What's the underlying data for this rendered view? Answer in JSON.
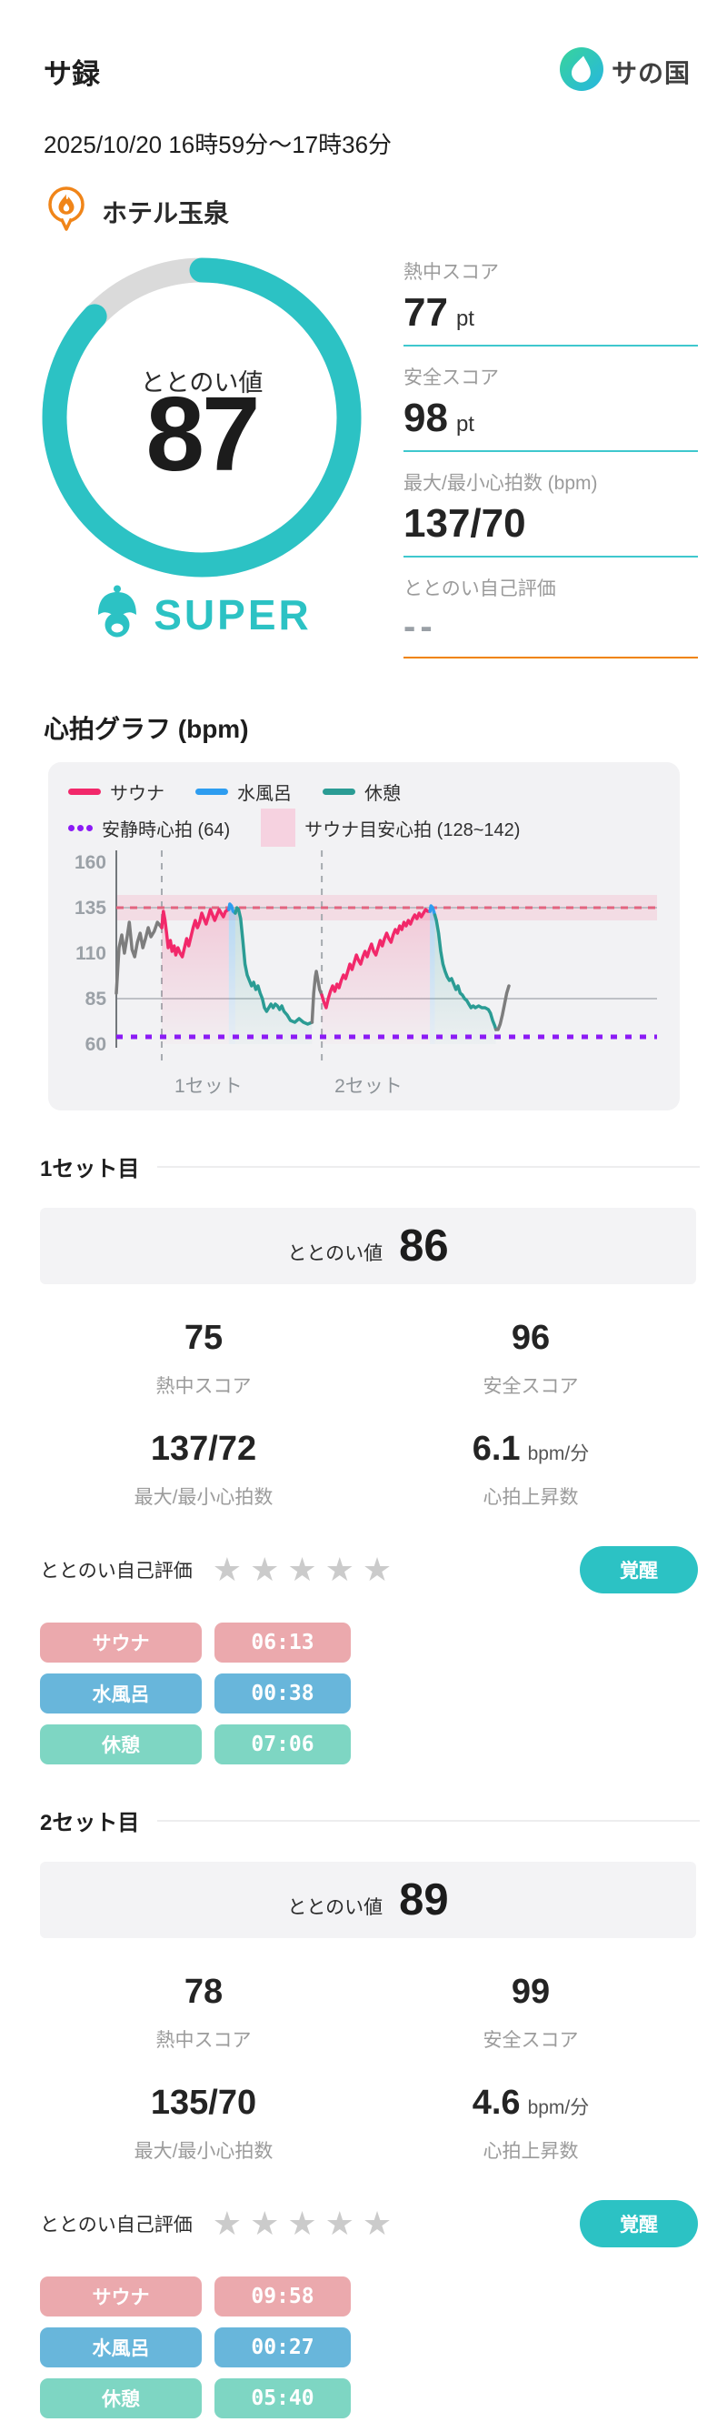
{
  "header": {
    "app_title": "サ録",
    "brand": "サの国"
  },
  "session": {
    "datetime": "2025/10/20 16時59分〜17時36分",
    "location": "ホテル玉泉"
  },
  "summary": {
    "gauge_label": "ととのい値",
    "gauge_value": "87",
    "gauge_percent": 87,
    "rank": "SUPER",
    "stats": [
      {
        "label": "熱中スコア",
        "value": "77",
        "unit": "pt"
      },
      {
        "label": "安全スコア",
        "value": "98",
        "unit": "pt"
      },
      {
        "label": "最大/最小心拍数 (bpm)",
        "value": "137/70",
        "unit": ""
      },
      {
        "label": "ととのい自己評価",
        "value": "--",
        "unit": ""
      }
    ]
  },
  "chart": {
    "heading": "心拍グラフ (bpm)",
    "legend": [
      {
        "label": "サウナ",
        "swatch": "line-sauna"
      },
      {
        "label": "水風呂",
        "swatch": "line-mizuburo"
      },
      {
        "label": "休憩",
        "swatch": "line-rest"
      },
      {
        "label": "安静時心拍 (64)",
        "swatch": "dots-purple"
      },
      {
        "label": "サウナ目安心拍 (128~142)",
        "swatch": "band-pink"
      }
    ]
  },
  "chart_data": {
    "type": "line",
    "title": "心拍グラフ (bpm)",
    "ylabel": "bpm",
    "yticks": [
      160,
      135,
      110,
      85,
      60
    ],
    "ylim": [
      55,
      165
    ],
    "xlim_minutes": [
      0,
      50
    ],
    "grid_lines_bpm": [
      135,
      85
    ],
    "reference_lines": {
      "resting_hr": {
        "label": "安静時心拍 (64)",
        "value": 64,
        "style": "purple-dotted"
      },
      "sauna_target": {
        "label": "サウナ目安心拍 (128~142)",
        "range": [
          128,
          142
        ],
        "line": 135,
        "style": "pink-band-red-dashed"
      }
    },
    "set_markers": [
      {
        "label": "1セット",
        "minute": 4.2
      },
      {
        "label": "2セット",
        "minute": 19.0
      }
    ],
    "segments": [
      {
        "phase": "開始前",
        "key": "gray",
        "fill": false,
        "points": [
          [
            0,
            88
          ],
          [
            0.25,
            113
          ],
          [
            0.5,
            120
          ],
          [
            0.75,
            110
          ],
          [
            1.0,
            119
          ],
          [
            1.2,
            127
          ],
          [
            1.45,
            112
          ],
          [
            1.7,
            108
          ],
          [
            1.95,
            116
          ],
          [
            2.2,
            121
          ],
          [
            2.45,
            113
          ],
          [
            2.7,
            118
          ],
          [
            2.95,
            124
          ],
          [
            3.2,
            119
          ],
          [
            3.5,
            122
          ],
          [
            3.8,
            127
          ],
          [
            4.2,
            124
          ]
        ]
      },
      {
        "phase": "サウナ1",
        "key": "sauna",
        "fill": true,
        "points": [
          [
            4.2,
            124
          ],
          [
            4.35,
            133
          ],
          [
            4.5,
            128
          ],
          [
            4.65,
            121
          ],
          [
            4.8,
            113
          ],
          [
            5.0,
            117
          ],
          [
            5.15,
            111
          ],
          [
            5.35,
            114
          ],
          [
            5.5,
            109
          ],
          [
            5.7,
            113
          ],
          [
            5.9,
            110
          ],
          [
            6.1,
            108
          ],
          [
            6.3,
            113
          ],
          [
            6.5,
            118
          ],
          [
            6.7,
            114
          ],
          [
            6.9,
            119
          ],
          [
            7.1,
            124
          ],
          [
            7.3,
            128
          ],
          [
            7.5,
            124
          ],
          [
            7.7,
            127
          ],
          [
            7.9,
            132
          ],
          [
            8.1,
            129
          ],
          [
            8.3,
            126
          ],
          [
            8.5,
            130
          ],
          [
            8.7,
            134
          ],
          [
            8.9,
            131
          ],
          [
            9.1,
            128
          ],
          [
            9.3,
            131
          ],
          [
            9.5,
            134
          ],
          [
            9.7,
            132
          ],
          [
            9.9,
            130
          ],
          [
            10.1,
            133
          ],
          [
            10.4,
            134
          ]
        ]
      },
      {
        "phase": "水風呂1",
        "key": "mizuburo",
        "fill": true,
        "points": [
          [
            10.4,
            134
          ],
          [
            10.5,
            137
          ],
          [
            10.65,
            136
          ],
          [
            10.8,
            133
          ],
          [
            11.0,
            132
          ]
        ]
      },
      {
        "phase": "休憩1",
        "key": "rest",
        "fill": true,
        "points": [
          [
            11.0,
            132
          ],
          [
            11.15,
            135
          ],
          [
            11.3,
            134
          ],
          [
            11.5,
            129
          ],
          [
            11.7,
            117
          ],
          [
            11.9,
            104
          ],
          [
            12.1,
            98
          ],
          [
            12.3,
            95
          ],
          [
            12.5,
            92
          ],
          [
            12.7,
            94
          ],
          [
            12.9,
            90
          ],
          [
            13.1,
            92
          ],
          [
            13.3,
            88
          ],
          [
            13.5,
            85
          ],
          [
            13.7,
            80
          ],
          [
            13.9,
            78
          ],
          [
            14.1,
            80
          ],
          [
            14.3,
            82
          ],
          [
            14.5,
            80
          ],
          [
            14.7,
            82
          ],
          [
            14.9,
            81
          ],
          [
            15.1,
            79
          ],
          [
            15.3,
            81
          ],
          [
            15.5,
            78
          ],
          [
            15.8,
            76
          ],
          [
            16.1,
            73
          ],
          [
            16.5,
            72
          ],
          [
            16.9,
            74
          ],
          [
            17.3,
            72
          ],
          [
            17.7,
            71
          ],
          [
            18.1,
            72
          ]
        ]
      },
      {
        "phase": "セット間",
        "key": "gray",
        "fill": false,
        "points": [
          [
            18.1,
            72
          ],
          [
            18.25,
            88
          ],
          [
            18.4,
            97
          ],
          [
            18.5,
            100
          ],
          [
            18.65,
            95
          ],
          [
            18.8,
            90
          ],
          [
            19.0,
            87
          ]
        ]
      },
      {
        "phase": "サウナ2",
        "key": "sauna",
        "fill": true,
        "points": [
          [
            19.0,
            87
          ],
          [
            19.2,
            83
          ],
          [
            19.4,
            80
          ],
          [
            19.6,
            85
          ],
          [
            19.8,
            89
          ],
          [
            20.0,
            92
          ],
          [
            20.2,
            89
          ],
          [
            20.4,
            93
          ],
          [
            20.6,
            91
          ],
          [
            20.8,
            95
          ],
          [
            21.0,
            98
          ],
          [
            21.2,
            96
          ],
          [
            21.4,
            100
          ],
          [
            21.6,
            104
          ],
          [
            21.8,
            101
          ],
          [
            22.0,
            105
          ],
          [
            22.2,
            109
          ],
          [
            22.4,
            106
          ],
          [
            22.6,
            104
          ],
          [
            22.8,
            108
          ],
          [
            23.0,
            111
          ],
          [
            23.2,
            108
          ],
          [
            23.4,
            112
          ],
          [
            23.6,
            115
          ],
          [
            23.8,
            111
          ],
          [
            24.0,
            109
          ],
          [
            24.2,
            113
          ],
          [
            24.4,
            117
          ],
          [
            24.6,
            114
          ],
          [
            24.8,
            118
          ],
          [
            25.0,
            121
          ],
          [
            25.2,
            118
          ],
          [
            25.4,
            116
          ],
          [
            25.6,
            120
          ],
          [
            25.8,
            123
          ],
          [
            26.0,
            121
          ],
          [
            26.2,
            125
          ],
          [
            26.4,
            123
          ],
          [
            26.6,
            127
          ],
          [
            26.8,
            125
          ],
          [
            27.0,
            128
          ],
          [
            27.2,
            126
          ],
          [
            27.4,
            129
          ],
          [
            27.6,
            131
          ],
          [
            27.8,
            129
          ],
          [
            28.0,
            132
          ],
          [
            28.2,
            130
          ],
          [
            28.4,
            132
          ],
          [
            28.6,
            134
          ],
          [
            28.8,
            133
          ],
          [
            29.0,
            133
          ]
        ]
      },
      {
        "phase": "水風呂2",
        "key": "mizuburo",
        "fill": true,
        "points": [
          [
            29.0,
            133
          ],
          [
            29.1,
            136
          ],
          [
            29.25,
            135
          ],
          [
            29.45,
            131
          ]
        ]
      },
      {
        "phase": "休憩2",
        "key": "rest",
        "fill": true,
        "points": [
          [
            29.45,
            131
          ],
          [
            29.6,
            128
          ],
          [
            29.8,
            121
          ],
          [
            30.0,
            111
          ],
          [
            30.2,
            104
          ],
          [
            30.4,
            100
          ],
          [
            30.6,
            97
          ],
          [
            30.8,
            95
          ],
          [
            31.0,
            96
          ],
          [
            31.2,
            93
          ],
          [
            31.4,
            90
          ],
          [
            31.6,
            92
          ],
          [
            31.8,
            88
          ],
          [
            32.0,
            87
          ],
          [
            32.2,
            85
          ],
          [
            32.4,
            84
          ],
          [
            32.6,
            82
          ],
          [
            32.8,
            80
          ],
          [
            33.0,
            81
          ],
          [
            33.2,
            80
          ],
          [
            33.5,
            81
          ],
          [
            33.8,
            80
          ],
          [
            34.1,
            80
          ],
          [
            34.4,
            79
          ],
          [
            34.6,
            77
          ],
          [
            34.8,
            73
          ],
          [
            35.0,
            70
          ],
          [
            35.1,
            68
          ]
        ]
      },
      {
        "phase": "終了後",
        "key": "gray",
        "fill": false,
        "points": [
          [
            35.1,
            68
          ],
          [
            35.3,
            68
          ],
          [
            35.5,
            71
          ],
          [
            35.7,
            76
          ],
          [
            35.9,
            82
          ],
          [
            36.1,
            88
          ],
          [
            36.3,
            92
          ]
        ]
      }
    ]
  },
  "sets": [
    {
      "title": "1セット目",
      "totonoi_label": "ととのい値",
      "totonoi_value": "86",
      "stats": [
        {
          "value": "75",
          "unit": "",
          "label": "熱中スコア"
        },
        {
          "value": "96",
          "unit": "",
          "label": "安全スコア"
        },
        {
          "value": "137/72",
          "unit": "",
          "label": "最大/最小心拍数"
        },
        {
          "value": "6.1",
          "unit": "bpm/分",
          "label": "心拍上昇数"
        }
      ],
      "rating": {
        "label": "ととのい自己評価",
        "stars_total": 5,
        "stars_filled": 0
      },
      "state_button": "覚醒",
      "durations": [
        {
          "label": "サウナ",
          "time": "06:13"
        },
        {
          "label": "水風呂",
          "time": "00:38"
        },
        {
          "label": "休憩",
          "time": "07:06"
        }
      ]
    },
    {
      "title": "2セット目",
      "totonoi_label": "ととのい値",
      "totonoi_value": "89",
      "stats": [
        {
          "value": "78",
          "unit": "",
          "label": "熱中スコア"
        },
        {
          "value": "99",
          "unit": "",
          "label": "安全スコア"
        },
        {
          "value": "135/70",
          "unit": "",
          "label": "最大/最小心拍数"
        },
        {
          "value": "4.6",
          "unit": "bpm/分",
          "label": "心拍上昇数"
        }
      ],
      "rating": {
        "label": "ととのい自己評価",
        "stars_total": 5,
        "stars_filled": 0
      },
      "state_button": "覚醒",
      "durations": [
        {
          "label": "サウナ",
          "time": "09:58"
        },
        {
          "label": "水風呂",
          "time": "00:27"
        },
        {
          "label": "休憩",
          "time": "05:40"
        }
      ]
    }
  ],
  "colors": {
    "accent_teal": "#2cc2c4",
    "ring_track": "#dadada",
    "line_sauna": "#f2286a",
    "line_mizuburo": "#2e9df0",
    "line_rest": "#2b9c94",
    "line_neutral": "#7d7d7d",
    "resting_line": "#8b1bf5",
    "target_band": "#f3c6d4",
    "target_line": "#e2647f",
    "pill_sauna": "#eba9ad",
    "pill_mizuburo": "#68b6db",
    "pill_rest": "#7ed6c3",
    "underline_teal": "#3fc8ce",
    "underline_orange": "#f08300",
    "location_orange": "#f08519",
    "star_gray": "#cbcbcb"
  }
}
